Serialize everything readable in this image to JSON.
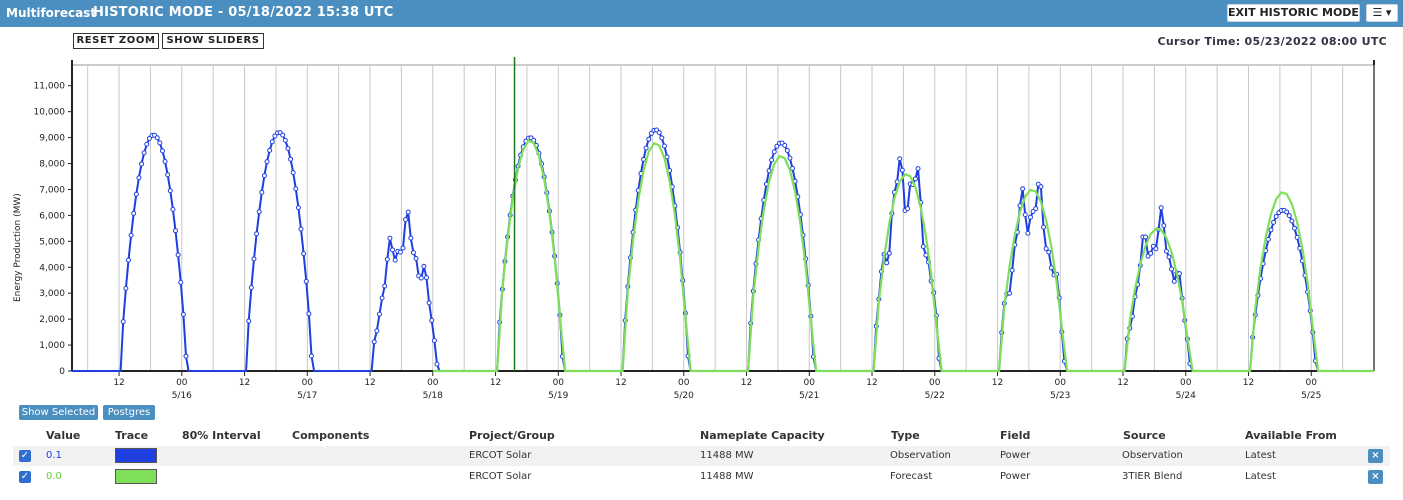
{
  "header": {
    "app_name": "Multiforecast",
    "mode_title": "HISTORIC MODE - 05/18/2022 15:38 UTC",
    "exit_label": "EXIT HISTORIC MODE",
    "menu_label": "☰ ▾"
  },
  "controls": {
    "reset_zoom": "RESET ZOOM",
    "show_sliders": "SHOW SLIDERS",
    "cursor_time": "Cursor Time: 05/23/2022 08:00 UTC"
  },
  "chart_data": {
    "type": "line",
    "ylabel": "Energy Production (MW)",
    "ylim": [
      0,
      11800
    ],
    "yticks": [
      0,
      1000,
      2000,
      3000,
      4000,
      5000,
      6000,
      7000,
      8000,
      9000,
      10000,
      11000
    ],
    "ytick_labels": [
      "0",
      "1,000",
      "2,000",
      "3,000",
      "4,000",
      "5,000",
      "6,000",
      "7,000",
      "8,000",
      "9,000",
      "10,000",
      "11,000"
    ],
    "x_start": "2022-05-15T03:00",
    "x_end": "2022-05-25T12:00",
    "days": [
      {
        "date": "5/16",
        "hour_label": "00"
      },
      {
        "date": "5/17",
        "hour_label": "00"
      },
      {
        "date": "5/18",
        "hour_label": "00"
      },
      {
        "date": "5/19",
        "hour_label": "00"
      },
      {
        "date": "5/20",
        "hour_label": "00"
      },
      {
        "date": "5/21",
        "hour_label": "00"
      },
      {
        "date": "5/22",
        "hour_label": "00"
      },
      {
        "date": "5/23",
        "hour_label": "00"
      },
      {
        "date": "5/24",
        "hour_label": "00"
      },
      {
        "date": "5/25",
        "hour_label": "00"
      }
    ],
    "noon_label": "12",
    "cursor_line": "2022-05-18T15:38",
    "grid": true,
    "series": [
      {
        "name": "Observation",
        "color": "#1f3fe0",
        "markers": true,
        "daily_profiles": [
          {
            "date": "2022-05-15",
            "peak": 9100,
            "shape": "smooth"
          },
          {
            "date": "2022-05-16",
            "peak": 9200,
            "shape": "smooth"
          },
          {
            "date": "2022-05-17",
            "peak": 6100,
            "shape": "cloudy"
          },
          {
            "date": "2022-05-18",
            "peak": 9000,
            "shape": "smooth"
          },
          {
            "date": "2022-05-19",
            "peak": 9300,
            "shape": "smooth"
          },
          {
            "date": "2022-05-20",
            "peak": 8800,
            "shape": "smooth"
          },
          {
            "date": "2022-05-21",
            "peak": 8700,
            "shape": "cloudy"
          },
          {
            "date": "2022-05-22",
            "peak": 7600,
            "shape": "cloudy"
          },
          {
            "date": "2022-05-23",
            "peak": 6200,
            "shape": "cloudy"
          },
          {
            "date": "2022-05-24",
            "peak": 6200,
            "shape": "smooth"
          }
        ]
      },
      {
        "name": "3TIER Blend",
        "color": "#7ee05a",
        "markers": false,
        "start": "2022-05-18",
        "daily_profiles": [
          {
            "date": "2022-05-18",
            "peak": 8900,
            "shape": "smooth"
          },
          {
            "date": "2022-05-19",
            "peak": 8800,
            "shape": "smooth"
          },
          {
            "date": "2022-05-20",
            "peak": 8300,
            "shape": "smooth"
          },
          {
            "date": "2022-05-21",
            "peak": 7600,
            "shape": "smooth"
          },
          {
            "date": "2022-05-22",
            "peak": 7000,
            "shape": "smooth"
          },
          {
            "date": "2022-05-23",
            "peak": 5500,
            "shape": "smooth"
          },
          {
            "date": "2022-05-24",
            "peak": 6900,
            "shape": "smooth"
          }
        ]
      }
    ]
  },
  "buttons": {
    "show_selected": "Show Selected",
    "postgres": "Postgres"
  },
  "table": {
    "headers": {
      "value": "Value",
      "trace": "Trace",
      "interval": "80% Interval",
      "components": "Components",
      "project": "Project/Group",
      "capacity": "Nameplate Capacity",
      "type": "Type",
      "field": "Field",
      "source": "Source",
      "available": "Available From"
    },
    "rows": [
      {
        "value": "0.1",
        "value_color": "#1f3fe0",
        "trace_color": "#1f3fe0",
        "project": "ERCOT Solar",
        "capacity": "11488 MW",
        "type": "Observation",
        "field": "Power",
        "source": "Observation",
        "available": "Latest",
        "remove": "×"
      },
      {
        "value": "0.0",
        "value_color": "#5fcf3a",
        "trace_color": "#7ee05a",
        "project": "ERCOT Solar",
        "capacity": "11488 MW",
        "type": "Forecast",
        "field": "Power",
        "source": "3TIER Blend",
        "available": "Latest",
        "remove": "×"
      }
    ]
  }
}
